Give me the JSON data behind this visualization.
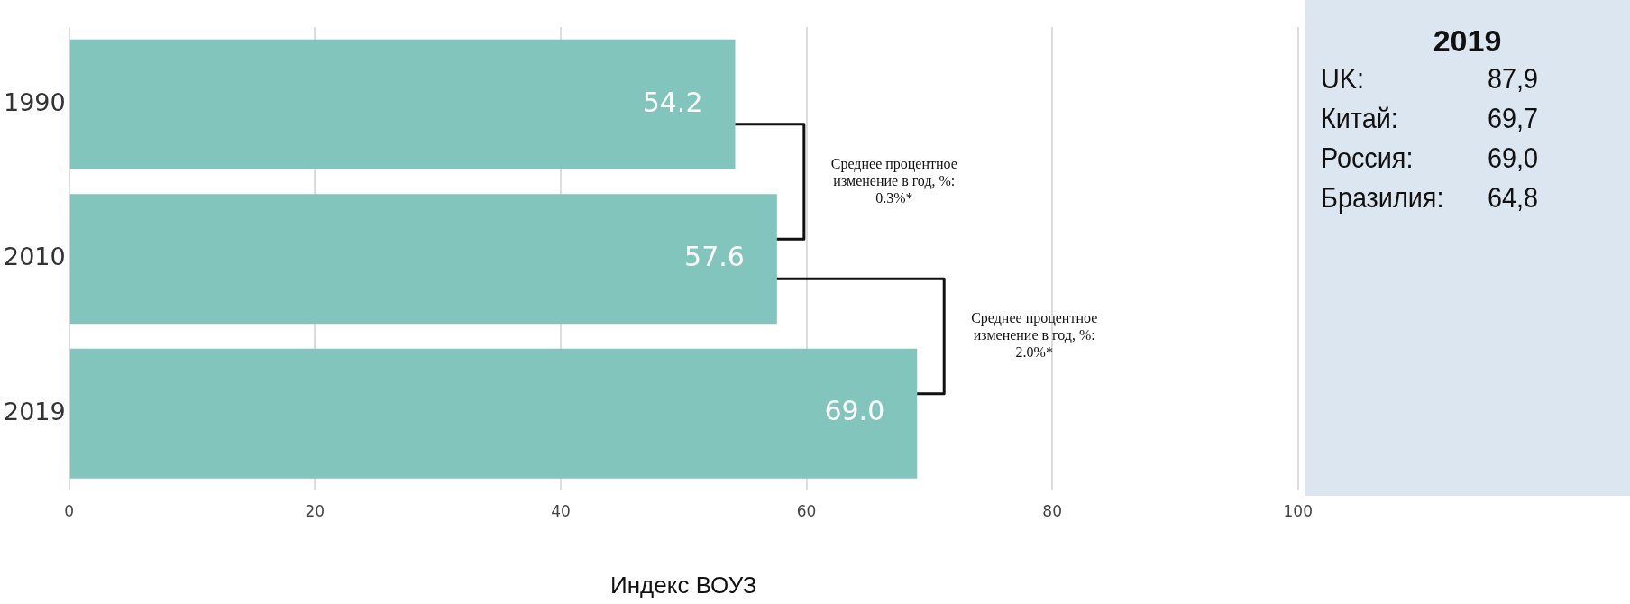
{
  "chart_data": [
    {
      "type": "bar",
      "orientation": "horizontal",
      "categories": [
        "1990",
        "2010",
        "2019"
      ],
      "values": [
        54.2,
        57.6,
        69.0
      ],
      "value_labels": [
        "54.2",
        "57.6",
        "69.0"
      ],
      "color": "#82c5bc",
      "xlim": [
        0,
        100
      ],
      "xticks": [
        0,
        20,
        40,
        60,
        80,
        100
      ],
      "xlabel": "Индекс ВОУЗ",
      "grid": "x",
      "annotations": [
        "Среднее процентное изменение в год, %: 0.3%*",
        "Среднее процентное изменение в год, %: 2.0%*"
      ]
    },
    {
      "type": "other",
      "title": "2019",
      "annotations": [
        "UK:",
        "87,9",
        "Китай:",
        "69,7",
        "Россия:",
        "69,0",
        "Бразилия:",
        "64,8"
      ],
      "color": "#dce6f1"
    }
  ]
}
